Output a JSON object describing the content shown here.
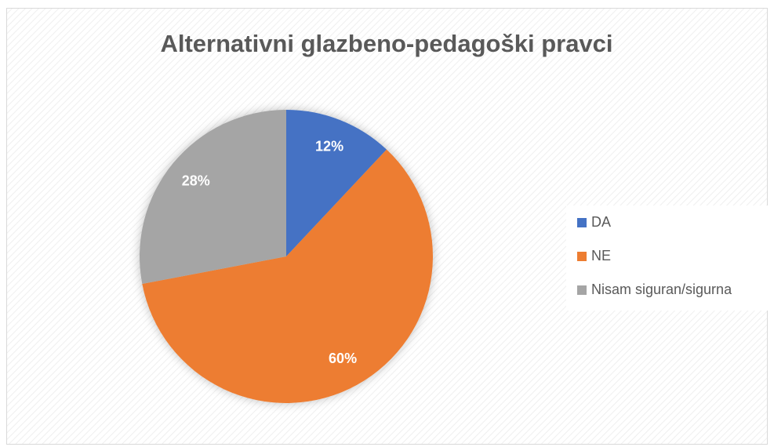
{
  "chart_data": {
    "type": "pie",
    "title": "Alternativni glazbeno-pedagoški pravci",
    "categories": [
      "DA",
      "NE",
      "Nisam siguran/sigurna"
    ],
    "values": [
      12,
      60,
      28
    ],
    "value_labels": [
      "12%",
      "60%",
      "28%"
    ],
    "colors": [
      "#4472c4",
      "#ed7d31",
      "#a5a5a5"
    ],
    "legend": "right"
  }
}
